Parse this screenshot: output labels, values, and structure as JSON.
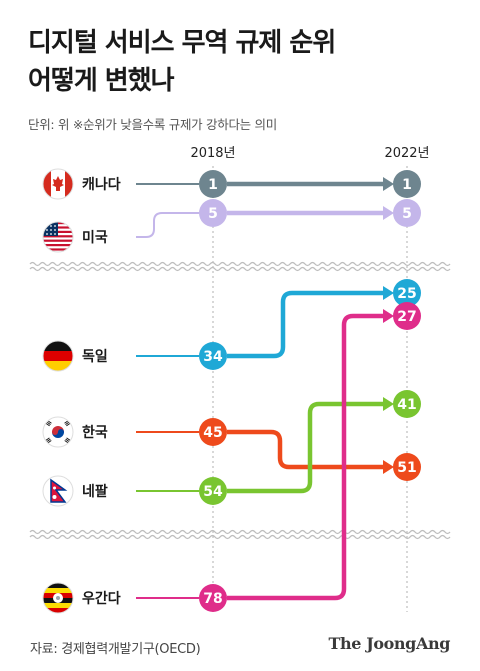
{
  "header": {
    "title_line1": "디지털 서비스 무역 규제 순위",
    "title_line2": "어떻게 변했나",
    "subtitle": "단위: 위  ※순위가 낮을수록 규제가 강하다는 의미"
  },
  "footer": {
    "source": "자료: 경제협력개발기구(OECD)",
    "brand": "The JoongAng"
  },
  "chart_data": {
    "type": "slope",
    "x": [
      "2018년",
      "2022년"
    ],
    "unit": "위",
    "note": "※순위가 낮을수록 규제가 강하다는 의미",
    "y_scale": "broken",
    "series": [
      {
        "name": "캐나다",
        "values": [
          1,
          1
        ],
        "color": "#6e858f",
        "flag": "canada-flag"
      },
      {
        "name": "미국",
        "values": [
          5,
          5
        ],
        "color": "#c4b6ea",
        "flag": "usa-flag"
      },
      {
        "name": "독일",
        "values": [
          34,
          25
        ],
        "color": "#1fa8d6",
        "flag": "germany-flag"
      },
      {
        "name": "한국",
        "values": [
          45,
          51
        ],
        "color": "#ee4a1c",
        "flag": "korea-flag"
      },
      {
        "name": "네팔",
        "values": [
          54,
          41
        ],
        "color": "#79c530",
        "flag": "nepal-flag"
      },
      {
        "name": "우간다",
        "values": [
          78,
          27
        ],
        "color": "#df2d8a",
        "flag": "uganda-flag"
      }
    ]
  }
}
